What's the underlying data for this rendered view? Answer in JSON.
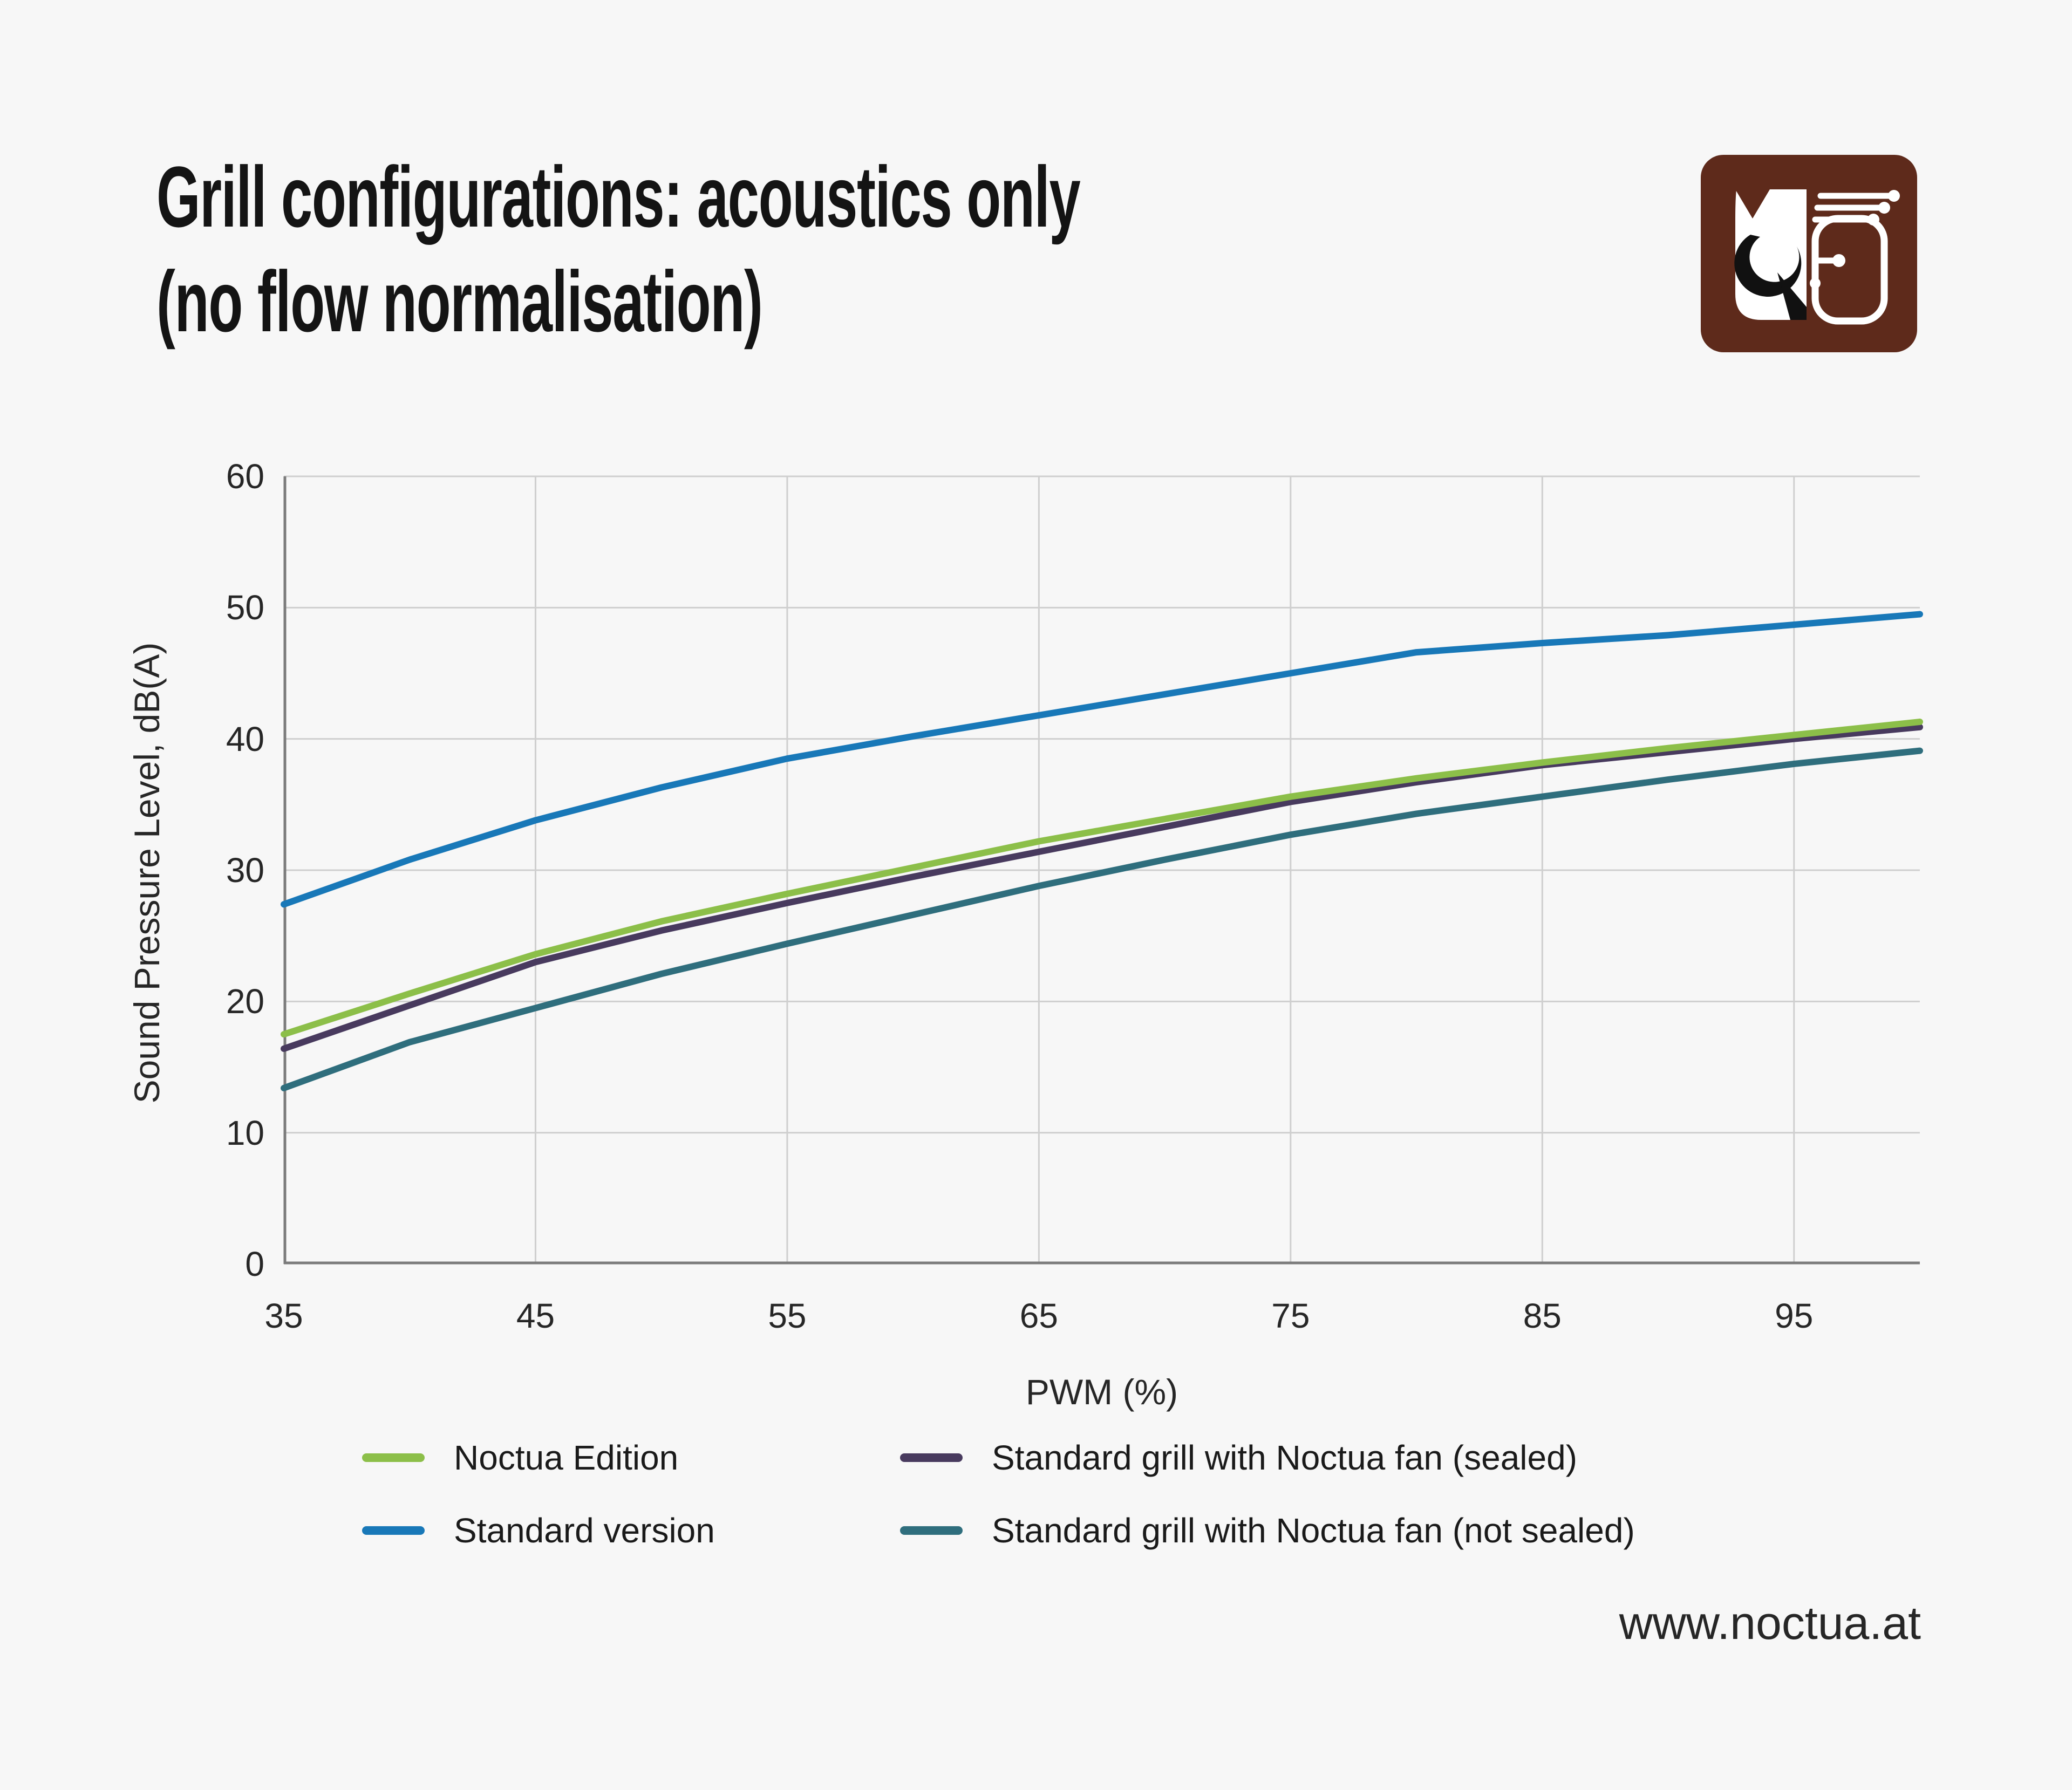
{
  "title": {
    "line1": "Grill configurations: acoustics only",
    "line2": "(no flow normalisation)"
  },
  "logo": {
    "name": "noctua-logo",
    "background_color": "#5e2a1b",
    "mark_color": "#ffffff"
  },
  "footer": {
    "url": "www.noctua.at"
  },
  "colors": {
    "background": "#f7f7f7",
    "gridline": "#cfcfcf",
    "spine": "#7b7b7b",
    "title_text": "#141414",
    "body_text": "#262626"
  },
  "legend": {
    "items": [
      {
        "label": "Noctua Edition",
        "color": "#8cbf49"
      },
      {
        "label": "Standard version",
        "color": "#1878b8"
      },
      {
        "label": "Standard grill with Noctua fan (sealed)",
        "color": "#483a5e"
      },
      {
        "label": "Standard grill with Noctua fan (not sealed)",
        "color": "#2f6e7d"
      }
    ]
  },
  "chart_data": {
    "type": "line",
    "title": "Grill configurations: acoustics only (no flow normalisation)",
    "xlabel": "PWM (%)",
    "ylabel": "Sound Pressure Level, dB(A)",
    "xlim": [
      35,
      100
    ],
    "ylim": [
      0,
      60
    ],
    "x_ticks": [
      35,
      45,
      55,
      65,
      75,
      85,
      95
    ],
    "y_ticks": [
      0,
      10,
      20,
      30,
      40,
      50,
      60
    ],
    "grid": true,
    "legend_position": "below",
    "x": [
      35,
      40,
      45,
      50,
      55,
      60,
      65,
      70,
      75,
      80,
      85,
      90,
      95,
      100
    ],
    "series": [
      {
        "name": "Noctua Edition",
        "color": "#8cbf49",
        "values": [
          17.5,
          20.6,
          23.6,
          26.1,
          28.2,
          30.2,
          32.2,
          33.9,
          35.6,
          37.0,
          38.2,
          39.3,
          40.3,
          41.3
        ]
      },
      {
        "name": "Standard version",
        "color": "#1878b8",
        "values": [
          27.4,
          30.8,
          33.8,
          36.3,
          38.5,
          40.2,
          41.8,
          43.4,
          45.0,
          46.6,
          47.3,
          47.9,
          48.7,
          49.5
        ]
      },
      {
        "name": "Standard grill with Noctua fan (sealed)",
        "color": "#483a5e",
        "values": [
          16.4,
          19.7,
          23.0,
          25.4,
          27.5,
          29.5,
          31.4,
          33.3,
          35.2,
          36.7,
          38.0,
          39.0,
          40.0,
          40.9
        ]
      },
      {
        "name": "Standard grill with Noctua fan (not sealed)",
        "color": "#2f6e7d",
        "values": [
          13.4,
          16.9,
          19.5,
          22.1,
          24.4,
          26.6,
          28.8,
          30.8,
          32.7,
          34.3,
          35.6,
          36.9,
          38.1,
          39.1
        ]
      }
    ]
  }
}
